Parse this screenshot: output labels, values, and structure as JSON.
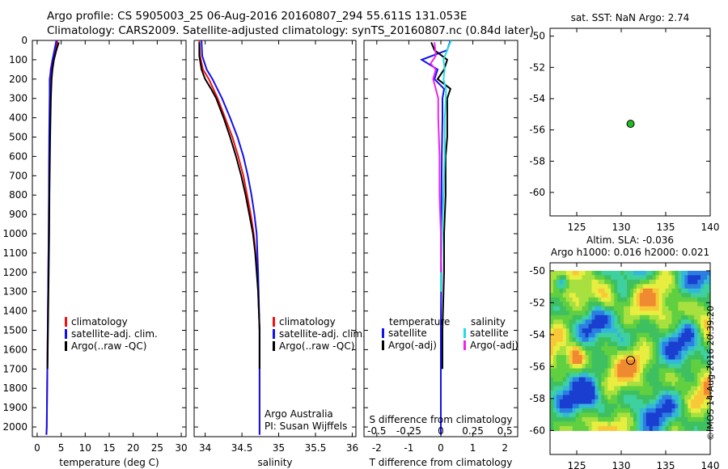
{
  "header": {
    "line1": "Argo profile: CS 5905003_25 06-Aug-2016 20160807_294 55.611S 131.053E",
    "line2": "Climatology: CARS2009. Satellite-adjusted climatology: synTS_20160807.nc (0.84d later)"
  },
  "credit": "©IMOS 14-Aug-2016 20:39:20",
  "colors": {
    "climatology": "#ee1111",
    "satellite": "#1111ee",
    "argo": "#000000",
    "sat_salinity": "#22dddd",
    "argo_salinity": "#ee22ee",
    "marker": "#22bb22"
  },
  "chart_data": [
    {
      "type": "line",
      "xlabel": "temperature (deg C)",
      "xlim": [
        -1,
        31
      ],
      "ylim": [
        0,
        2050
      ],
      "y_reversed": true,
      "xticks": [
        "0",
        "5",
        "10",
        "15",
        "20",
        "25",
        "30"
      ],
      "yticks": [
        "0",
        "100",
        "200",
        "300",
        "400",
        "500",
        "600",
        "700",
        "800",
        "900",
        "1000",
        "1100",
        "1200",
        "1300",
        "1400",
        "1500",
        "1600",
        "1700",
        "1800",
        "1900",
        "2000"
      ],
      "legend": [
        "climatology",
        "satellite-adj. clim.",
        "Argo(..raw -QC)"
      ],
      "series": [
        {
          "name": "climatology",
          "depth": [
            0,
            50,
            100,
            150,
            200,
            300,
            500,
            800,
            1000,
            1500,
            2000,
            2040
          ],
          "values": [
            4.2,
            3.9,
            3.2,
            2.8,
            2.7,
            2.6,
            2.55,
            2.45,
            2.4,
            2.2,
            2.0,
            1.9
          ]
        },
        {
          "name": "satellite-adj. clim.",
          "depth": [
            0,
            50,
            100,
            150,
            200,
            250,
            300,
            500,
            800,
            1000,
            1500,
            2000,
            2040
          ],
          "values": [
            4.0,
            3.6,
            3.2,
            2.9,
            2.6,
            2.6,
            2.6,
            2.5,
            2.45,
            2.4,
            2.2,
            2.0,
            1.95
          ]
        },
        {
          "name": "Argo(..raw -QC)",
          "depth": [
            10,
            50,
            100,
            150,
            200,
            300,
            500,
            800,
            1000,
            1200,
            1500,
            1700
          ],
          "values": [
            4.5,
            4.0,
            3.5,
            3.2,
            3.0,
            2.85,
            2.7,
            2.55,
            2.5,
            2.4,
            2.25,
            2.15
          ]
        }
      ]
    },
    {
      "type": "line",
      "xlabel": "salinity",
      "xlim": [
        33.85,
        36.05
      ],
      "ylim": [
        0,
        2050
      ],
      "y_reversed": true,
      "xticks": [
        "34",
        "34.5",
        "35",
        "35.5",
        "36"
      ],
      "legend": [
        "climatology",
        "satellite-adj. clim.",
        "Argo(..raw -QC)"
      ],
      "annotation": [
        "Argo Australia",
        "PI: Susan Wijffels"
      ],
      "series": [
        {
          "name": "climatology",
          "depth": [
            0,
            80,
            150,
            200,
            300,
            400,
            500,
            600,
            700,
            800,
            900,
            1000,
            1200,
            1500,
            2000,
            2040
          ],
          "values": [
            33.92,
            33.93,
            33.97,
            34.05,
            34.17,
            34.27,
            34.37,
            34.45,
            34.52,
            34.57,
            34.62,
            34.66,
            34.71,
            34.74,
            34.74,
            34.74
          ]
        },
        {
          "name": "satellite-adj. clim.",
          "depth": [
            0,
            80,
            150,
            200,
            300,
            400,
            500,
            600,
            700,
            800,
            900,
            1000,
            1200,
            1500,
            2000,
            2040
          ],
          "values": [
            33.95,
            33.96,
            34.02,
            34.1,
            34.23,
            34.34,
            34.44,
            34.52,
            34.58,
            34.63,
            34.67,
            34.7,
            34.72,
            34.74,
            34.74,
            34.74
          ]
        },
        {
          "name": "Argo(..raw -QC)",
          "depth": [
            10,
            80,
            150,
            200,
            250,
            300,
            400,
            500,
            600,
            700,
            800,
            900,
            1000,
            1100,
            1200,
            1300,
            1500,
            1700
          ],
          "values": [
            33.92,
            33.92,
            33.95,
            34.0,
            34.08,
            34.15,
            34.25,
            34.34,
            34.42,
            34.49,
            34.55,
            34.6,
            34.65,
            34.68,
            34.7,
            34.72,
            34.74,
            34.74
          ]
        }
      ]
    },
    {
      "type": "line",
      "xlabel": "T difference from climatology",
      "xlabel_top": "S difference from climatology",
      "xlim": [
        -2.4,
        2.4
      ],
      "ylim": [
        0,
        2050
      ],
      "y_reversed": true,
      "xticks": [
        "-2",
        "-1",
        "0",
        "1",
        "2"
      ],
      "xticks_top": [
        "-0.5",
        "-0.25",
        "0",
        "0.25",
        "0.5"
      ],
      "legend_titles": [
        "temperature",
        "salinity"
      ],
      "legend": [
        "satellite",
        "Argo(-adj)",
        "satellite",
        "Argo(-adj)"
      ],
      "series": [
        {
          "name": "temperature satellite",
          "depth": [
            0,
            50,
            100,
            150,
            200,
            250,
            300,
            400,
            600,
            800,
            1000,
            1500,
            2000,
            2040
          ],
          "values": [
            0.3,
            0.2,
            -0.6,
            -0.1,
            -0.2,
            0.1,
            0.05,
            0.05,
            0.03,
            0.02,
            0.02,
            0.0,
            0.0,
            0.0
          ]
        },
        {
          "name": "temperature Argo(-adj)",
          "depth": [
            10,
            50,
            100,
            150,
            200,
            250,
            300,
            400,
            500,
            600,
            800,
            1000,
            1200,
            1500,
            1700
          ],
          "values": [
            -0.3,
            -0.2,
            0.2,
            0.1,
            -0.1,
            0.3,
            0.2,
            0.2,
            0.2,
            0.15,
            0.15,
            0.1,
            0.1,
            0.05,
            0.05
          ]
        },
        {
          "name": "salinity satellite",
          "depth": [
            0,
            100,
            150,
            200,
            250,
            300,
            400,
            600,
            800,
            1000,
            1200,
            1300
          ],
          "values": [
            0.08,
            0.02,
            0.03,
            0.02,
            0.04,
            0.04,
            0.03,
            0.03,
            0.02,
            0.01,
            0.0,
            0.0
          ]
        },
        {
          "name": "salinity Argo(-adj)",
          "depth": [
            10,
            80,
            120,
            150,
            200,
            250,
            300,
            400,
            600,
            800,
            1000,
            1200
          ],
          "values": [
            -0.05,
            -0.04,
            -0.08,
            -0.04,
            -0.06,
            -0.04,
            -0.02,
            -0.02,
            -0.01,
            -0.01,
            0.0,
            0.0
          ]
        }
      ]
    },
    {
      "type": "scatter",
      "title": "sat. SST: NaN Argo: 2.74",
      "xlim": [
        122,
        140
      ],
      "ylim": [
        -61.5,
        -49.5
      ],
      "xticks": [
        "125",
        "130",
        "135",
        "140"
      ],
      "yticks": [
        "-50",
        "-52",
        "-54",
        "-56",
        "-58",
        "-60"
      ],
      "points": [
        {
          "x": 131.05,
          "y": -55.61
        }
      ]
    },
    {
      "type": "heatmap",
      "title": [
        "Altim. SLA: -0.036",
        "Argo h1000: 0.016 h2000: 0.021"
      ],
      "xlim": [
        122,
        140
      ],
      "ylim": [
        -61.5,
        -49.5
      ],
      "xticks": [
        "125",
        "130",
        "135",
        "140"
      ],
      "yticks": [
        "-50",
        "-52",
        "-54",
        "-56",
        "-58",
        "-60"
      ],
      "data_extent": {
        "lon": [
          122,
          140
        ],
        "lat": [
          -60,
          -50
        ]
      },
      "points": [
        {
          "x": 131.05,
          "y": -55.61
        }
      ]
    }
  ]
}
